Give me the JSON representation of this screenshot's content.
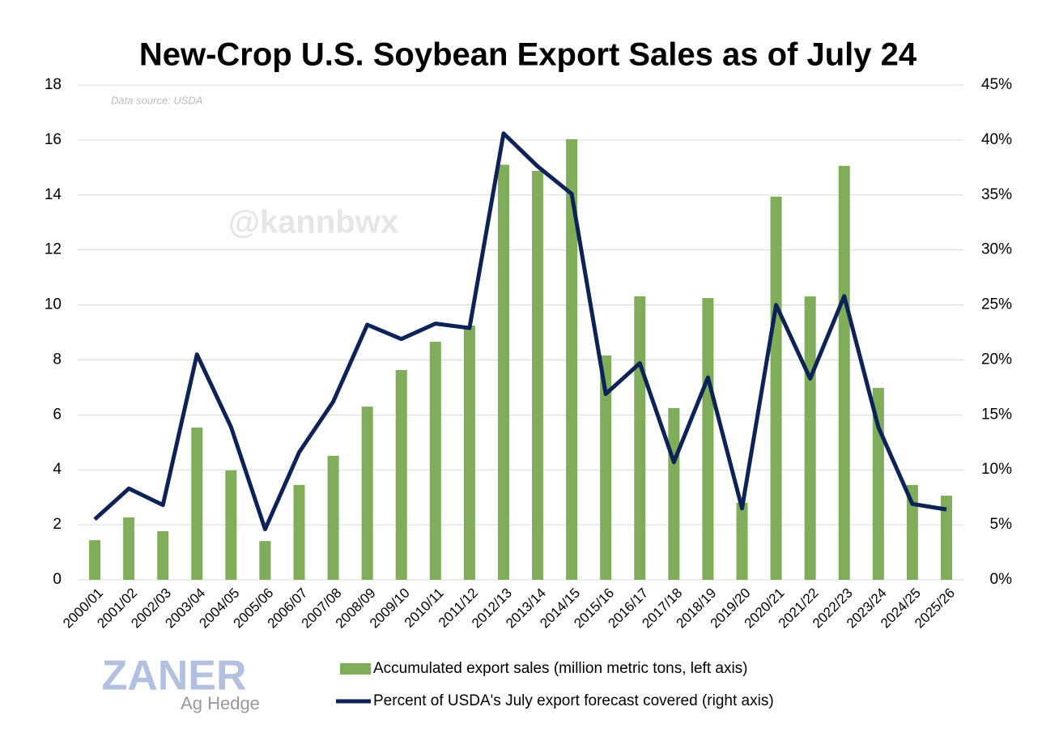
{
  "chart_data": {
    "type": "bar_line",
    "title": "New-Crop U.S. Soybean Export Sales as of July 24",
    "source": "Data source: USDA",
    "watermark": "@kannbwx",
    "logo": "ZANER",
    "logo_subtitle": "Ag Hedge",
    "categories": [
      "2000/01",
      "2001/02",
      "2002/03",
      "2003/04",
      "2004/05",
      "2005/06",
      "2006/07",
      "2007/08",
      "2008/09",
      "2009/10",
      "2010/11",
      "2011/12",
      "2012/13",
      "2013/14",
      "2014/15",
      "2015/16",
      "2016/17",
      "2017/18",
      "2018/19",
      "2019/20",
      "2020/21",
      "2021/22",
      "2022/23",
      "2023/24",
      "2024/25",
      "2025/26"
    ],
    "series": [
      {
        "name": "Accumulated export sales (million metric tons, left axis)",
        "color": "#7fad5a",
        "type": "bar",
        "values": [
          1.44,
          2.27,
          1.77,
          5.54,
          3.98,
          1.41,
          3.45,
          4.51,
          6.3,
          7.63,
          8.66,
          9.25,
          15.1,
          14.88,
          16.03,
          8.16,
          10.31,
          6.25,
          10.25,
          2.8,
          13.94,
          10.31,
          15.06,
          6.98,
          3.45,
          3.06
        ]
      },
      {
        "name": "Percent of USDA's July export forecast covered (right axis)",
        "color": "#0d2256",
        "type": "line",
        "axis": "y2",
        "values": [
          5.5,
          8.3,
          6.8,
          20.5,
          13.9,
          4.6,
          11.6,
          16.2,
          23.2,
          21.9,
          23.3,
          22.9,
          40.6,
          37.6,
          35.1,
          16.9,
          19.7,
          10.7,
          18.4,
          6.5,
          25.0,
          18.3,
          25.8,
          13.9,
          6.9,
          6.4
        ]
      }
    ],
    "ylim": [
      0,
      18
    ],
    "yticks": [
      0,
      2,
      4,
      6,
      8,
      10,
      12,
      14,
      16,
      18
    ],
    "y2lim": [
      0,
      45
    ],
    "y2ticks": [
      {
        "value": 0,
        "label": "0%"
      },
      {
        "value": 5,
        "label": "5%"
      },
      {
        "value": 10,
        "label": "10%"
      },
      {
        "value": 15,
        "label": "15%"
      },
      {
        "value": 20,
        "label": "20%"
      },
      {
        "value": 25,
        "label": "25%"
      },
      {
        "value": 30,
        "label": "30%"
      },
      {
        "value": 35,
        "label": "35%"
      },
      {
        "value": 40,
        "label": "40%"
      },
      {
        "value": 45,
        "label": "45%"
      }
    ],
    "grid": true
  }
}
